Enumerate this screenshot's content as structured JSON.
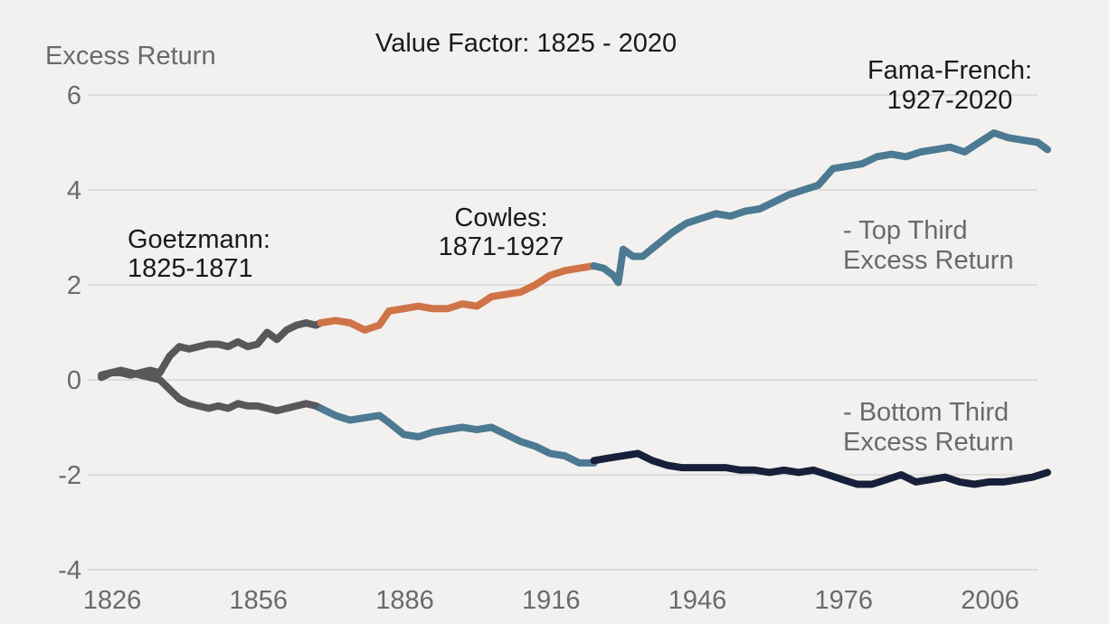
{
  "chart_data": {
    "type": "line",
    "title": "Value Factor: 1825 - 2020",
    "ylabel": "Excess Return",
    "xlabel": "",
    "ylim": [
      -4,
      6
    ],
    "xlim": [
      1826,
      2020
    ],
    "yticks": [
      "6",
      "4",
      "2",
      "0",
      "-2",
      "-4"
    ],
    "ytick_values": [
      6,
      4,
      2,
      0,
      -2,
      -4
    ],
    "xticks": [
      "1826",
      "1856",
      "1886",
      "1916",
      "1946",
      "1976",
      "2006"
    ],
    "xtick_values": [
      1826,
      1856,
      1886,
      1916,
      1946,
      1976,
      2006
    ],
    "grid": "horizontal",
    "colors": {
      "goetzmann": "#58585a",
      "cowles": "#cf7448",
      "fama_french_top": "#4c7a92",
      "fama_french_bottom": "#17203a",
      "grid": "#d2d0ce",
      "text": "#1a1a1a",
      "axis_text": "#6a6a6a",
      "background": "#f3f1ef"
    },
    "annotations": {
      "goetzmann": [
        "Goetzmann:",
        "1825-1871"
      ],
      "cowles": [
        "Cowles:",
        "1871-1927"
      ],
      "fama_french": [
        "Fama-French:",
        "1927-2020"
      ],
      "top_third": [
        "- Top Third",
        "Excess Return"
      ],
      "bottom_third": [
        "- Bottom Third",
        "Excess Return"
      ]
    },
    "series": [
      {
        "period": "1825-1871",
        "line": "top",
        "color_key": "goetzmann",
        "x": [
          1826,
          1828,
          1830,
          1832,
          1834,
          1836,
          1838,
          1840,
          1842,
          1844,
          1846,
          1848,
          1850,
          1852,
          1854,
          1856,
          1858,
          1860,
          1862,
          1864,
          1866,
          1868,
          1870,
          1871
        ],
        "y": [
          0.05,
          0.15,
          0.15,
          0.1,
          0.15,
          0.2,
          0.15,
          0.5,
          0.7,
          0.65,
          0.7,
          0.75,
          0.75,
          0.7,
          0.8,
          0.7,
          0.75,
          1.0,
          0.85,
          1.05,
          1.15,
          1.2,
          1.15,
          1.2
        ]
      },
      {
        "period": "1871-1927",
        "line": "top",
        "color_key": "cowles",
        "x": [
          1871,
          1874,
          1877,
          1880,
          1883,
          1885,
          1888,
          1891,
          1894,
          1897,
          1900,
          1903,
          1906,
          1909,
          1912,
          1915,
          1918,
          1921,
          1924,
          1927
        ],
        "y": [
          1.2,
          1.25,
          1.2,
          1.05,
          1.15,
          1.45,
          1.5,
          1.55,
          1.5,
          1.5,
          1.6,
          1.55,
          1.75,
          1.8,
          1.85,
          2.0,
          2.2,
          2.3,
          2.35,
          2.4
        ]
      },
      {
        "period": "1927-2020",
        "line": "top",
        "color_key": "fama_french_top",
        "x": [
          1927,
          1929,
          1931,
          1932,
          1933,
          1935,
          1937,
          1940,
          1943,
          1946,
          1949,
          1952,
          1955,
          1958,
          1961,
          1964,
          1967,
          1970,
          1973,
          1976,
          1979,
          1982,
          1985,
          1988,
          1991,
          1994,
          1997,
          2000,
          2003,
          2006,
          2009,
          2012,
          2015,
          2018,
          2020
        ],
        "y": [
          2.4,
          2.35,
          2.2,
          2.05,
          2.75,
          2.6,
          2.6,
          2.85,
          3.1,
          3.3,
          3.4,
          3.5,
          3.45,
          3.55,
          3.6,
          3.75,
          3.9,
          4.0,
          4.1,
          4.45,
          4.5,
          4.55,
          4.7,
          4.75,
          4.7,
          4.8,
          4.85,
          4.9,
          4.8,
          5.0,
          5.2,
          5.1,
          5.05,
          5.0,
          4.85
        ]
      },
      {
        "period": "1825-1871",
        "line": "bottom",
        "color_key": "goetzmann",
        "x": [
          1826,
          1828,
          1830,
          1832,
          1834,
          1836,
          1838,
          1840,
          1842,
          1844,
          1846,
          1848,
          1850,
          1852,
          1854,
          1856,
          1858,
          1860,
          1862,
          1864,
          1866,
          1868,
          1870,
          1871
        ],
        "y": [
          0.1,
          0.15,
          0.2,
          0.15,
          0.1,
          0.05,
          0.0,
          -0.2,
          -0.4,
          -0.5,
          -0.55,
          -0.6,
          -0.55,
          -0.6,
          -0.5,
          -0.55,
          -0.55,
          -0.6,
          -0.65,
          -0.6,
          -0.55,
          -0.5,
          -0.55,
          -0.6
        ]
      },
      {
        "period": "1871-1927",
        "line": "bottom",
        "color_key": "fama_french_top",
        "x": [
          1871,
          1874,
          1877,
          1880,
          1883,
          1885,
          1888,
          1891,
          1894,
          1897,
          1900,
          1903,
          1906,
          1909,
          1912,
          1915,
          1918,
          1921,
          1924,
          1927
        ],
        "y": [
          -0.6,
          -0.75,
          -0.85,
          -0.8,
          -0.75,
          -0.9,
          -1.15,
          -1.2,
          -1.1,
          -1.05,
          -1.0,
          -1.05,
          -1.0,
          -1.15,
          -1.3,
          -1.4,
          -1.55,
          -1.6,
          -1.75,
          -1.75
        ]
      },
      {
        "period": "1927-2020",
        "line": "bottom",
        "color_key": "fama_french_bottom",
        "x": [
          1927,
          1930,
          1933,
          1936,
          1939,
          1942,
          1945,
          1948,
          1951,
          1954,
          1957,
          1960,
          1963,
          1966,
          1969,
          1972,
          1975,
          1978,
          1981,
          1984,
          1987,
          1990,
          1993,
          1996,
          1999,
          2002,
          2005,
          2008,
          2011,
          2014,
          2017,
          2020
        ],
        "y": [
          -1.7,
          -1.65,
          -1.6,
          -1.55,
          -1.7,
          -1.8,
          -1.85,
          -1.85,
          -1.85,
          -1.85,
          -1.9,
          -1.9,
          -1.95,
          -1.9,
          -1.95,
          -1.9,
          -2.0,
          -2.1,
          -2.2,
          -2.2,
          -2.1,
          -2.0,
          -2.15,
          -2.1,
          -2.05,
          -2.15,
          -2.2,
          -2.15,
          -2.15,
          -2.1,
          -2.05,
          -1.95
        ]
      }
    ]
  }
}
